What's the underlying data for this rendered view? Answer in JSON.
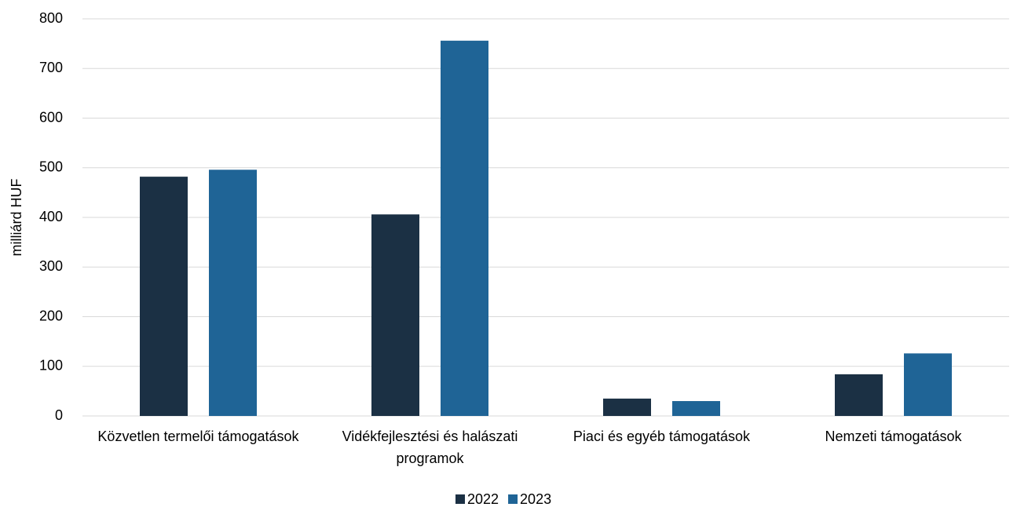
{
  "chart_data": {
    "type": "bar",
    "y_label": "milliárd HUF",
    "categories": [
      "Közvetlen termelői támogatások",
      "Vidékfejlesztési és halászati programok",
      "Piaci és egyéb támogatások",
      "Nemzeti támogatások"
    ],
    "series": [
      {
        "name": "2022",
        "color": "#1b3044",
        "values": [
          482,
          406,
          35,
          84
        ]
      },
      {
        "name": "2023",
        "color": "#1f6496",
        "values": [
          496,
          756,
          30,
          126
        ]
      }
    ],
    "ylim": [
      0,
      800
    ],
    "yticks": [
      0,
      100,
      200,
      300,
      400,
      500,
      600,
      700,
      800
    ],
    "grid": true,
    "legend": "bottom"
  }
}
